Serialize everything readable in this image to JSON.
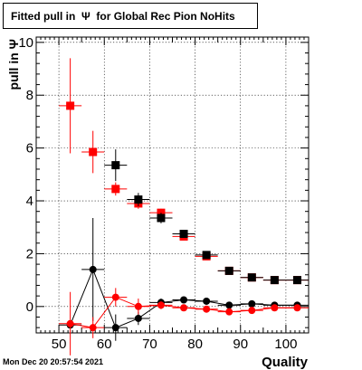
{
  "header": {
    "title": "Fitted pull in  Ψ  for Global Rec Pion NoHits"
  },
  "footer": {
    "timestamp": "Mon Dec 20 20:57:54 2021"
  },
  "chart_data": {
    "type": "scatter",
    "title": "Fitted pull in  Ψ  for Global Rec Pion NoHits",
    "xlabel": "Quality",
    "ylabel": "pull in  Ψ",
    "xlim": [
      45,
      105
    ],
    "ylim": [
      -1.0,
      10.2
    ],
    "x_ticks": [
      50,
      60,
      70,
      80,
      90,
      100
    ],
    "x_tick_labels": [
      "50",
      "60",
      "70",
      "80",
      "90",
      "100"
    ],
    "y_ticks": [
      0,
      2,
      4,
      6,
      8,
      10
    ],
    "y_tick_labels": [
      "0",
      "2",
      "4",
      "6",
      "8",
      "10"
    ],
    "grid": true,
    "x_half_width": 2.5,
    "series": [
      {
        "marker": "square",
        "color": "#ff0000",
        "x": [
          52.5,
          57.5,
          62.5,
          67.5,
          72.5,
          77.5,
          82.5,
          87.5,
          92.5,
          97.5,
          102.5
        ],
        "y": [
          7.6,
          5.85,
          4.45,
          3.9,
          3.55,
          2.65,
          1.9,
          1.35,
          1.1,
          1.0,
          1.0
        ],
        "yerr": [
          1.8,
          0.8,
          0.25,
          0.2,
          0.15,
          0.1,
          0.08,
          0.06,
          0.05,
          0.05,
          0.05
        ]
      },
      {
        "marker": "square",
        "color": "#000000",
        "x": [
          62.5,
          67.5,
          72.5,
          77.5,
          82.5,
          87.5,
          92.5,
          97.5,
          102.5
        ],
        "y": [
          5.35,
          4.05,
          3.35,
          2.75,
          1.95,
          1.35,
          1.1,
          1.0,
          1.0
        ],
        "yerr": [
          0.6,
          0.25,
          0.2,
          0.1,
          0.08,
          0.06,
          0.05,
          0.05,
          0.05
        ]
      },
      {
        "marker": "circle",
        "color": "#000000",
        "connected": true,
        "x": [
          52.5,
          57.5,
          62.5,
          67.5,
          72.5,
          77.5,
          82.5,
          87.5,
          92.5,
          97.5,
          102.5
        ],
        "y": [
          -0.7,
          1.4,
          -0.8,
          -0.45,
          0.15,
          0.25,
          0.2,
          0.05,
          0.1,
          0.05,
          0.05
        ],
        "yerr": [
          0.1,
          1.95,
          0.5,
          0.25,
          0.15,
          0.1,
          0.06,
          0.05,
          0.05,
          0.05,
          0.05
        ]
      },
      {
        "marker": "circle",
        "color": "#ff0000",
        "connected": true,
        "x": [
          52.5,
          57.5,
          62.5,
          67.5,
          72.5,
          77.5,
          82.5,
          87.5,
          92.5,
          97.5,
          102.5
        ],
        "y": [
          -0.65,
          -0.8,
          0.35,
          0.0,
          0.05,
          -0.05,
          -0.1,
          -0.2,
          -0.15,
          -0.05,
          -0.05
        ],
        "yerr": [
          1.2,
          0.4,
          0.35,
          0.3,
          0.15,
          0.1,
          0.08,
          0.06,
          0.05,
          0.05,
          0.05
        ]
      }
    ]
  }
}
